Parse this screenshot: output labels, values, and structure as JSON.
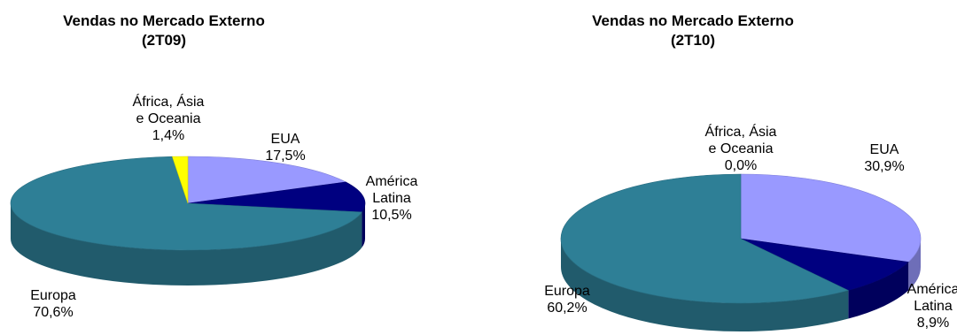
{
  "charts": [
    {
      "title_line1": "Vendas no Mercado Externo",
      "title_line2": "(2T09)"
    },
    {
      "title_line1": "Vendas no Mercado Externo",
      "title_line2": "(2T10)"
    }
  ],
  "chart_data": [
    {
      "type": "pie",
      "title": "Vendas no Mercado Externo (2T09)",
      "slices": [
        {
          "name": "EUA",
          "value": 17.5,
          "label": "17,5%",
          "color": "#9999ff"
        },
        {
          "name": "América Latina",
          "value": 10.5,
          "label": "10,5%",
          "color": "#000080"
        },
        {
          "name": "Europa",
          "value": 70.6,
          "label": "70,6%",
          "color": "#2e7f96"
        },
        {
          "name": "África, Ásia e Oceania",
          "value": 1.4,
          "label": "1,4%",
          "color": "#ffff00"
        }
      ],
      "label_lines": {
        "EUA": [
          "EUA",
          "17,5%"
        ],
        "América Latina": [
          "América",
          "Latina",
          "10,5%"
        ],
        "Europa": [
          "Europa",
          "70,6%"
        ],
        "África, Ásia e Oceania": [
          "África, Ásia",
          "e Oceania",
          "1,4%"
        ]
      }
    },
    {
      "type": "pie",
      "title": "Vendas no Mercado Externo (2T10)",
      "slices": [
        {
          "name": "EUA",
          "value": 30.9,
          "label": "30,9%",
          "color": "#9999ff"
        },
        {
          "name": "América Latina",
          "value": 8.9,
          "label": "8,9%",
          "color": "#000080"
        },
        {
          "name": "Europa",
          "value": 60.2,
          "label": "60,2%",
          "color": "#2e7f96"
        },
        {
          "name": "África, Ásia e Oceania",
          "value": 0.0,
          "label": "0,0%",
          "color": "#ffff00"
        }
      ],
      "label_lines": {
        "EUA": [
          "EUA",
          "30,9%"
        ],
        "América Latina": [
          "América",
          "Latina",
          "8,9%"
        ],
        "Europa": [
          "Europa",
          "60,2%"
        ],
        "África, Ásia e Oceania": [
          "África, Ásia",
          "e Oceania",
          "0,0%"
        ]
      }
    }
  ]
}
